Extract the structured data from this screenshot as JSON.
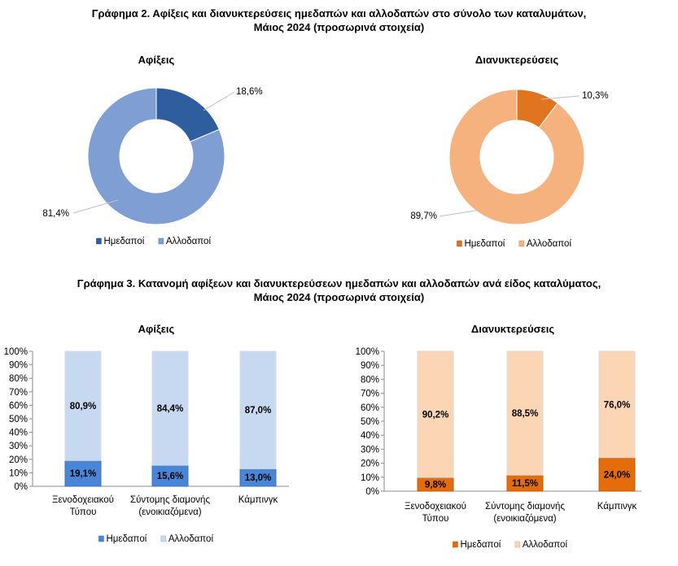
{
  "figure2": {
    "title_line1": "Γράφημα 2. Αφίξεις και διανυκτερεύσεις ημεδαπών και αλλοδαπών στο σύνολο των καταλυμάτων,",
    "title_line2": "Μάιος 2024  (προσωρινά στοιχεία)"
  },
  "figure3": {
    "title_line1": "Γράφημα 3. Κατανομή αφίξεων και διανυκτερεύσεων ημεδαπών και αλλοδαπών ανά είδος καταλύματος,",
    "title_line2": "Μάιος 2024 (προσωρινά στοιχεία)"
  },
  "chart_data": [
    {
      "type": "pie",
      "variant": "donut",
      "title": "Αφίξεις",
      "labels": [
        "Ημεδαποί",
        "Αλλοδαποί"
      ],
      "values": [
        18.6,
        81.4
      ],
      "value_labels": [
        "18,6%",
        "81,4%"
      ],
      "colors": [
        "#2F5E9E",
        "#7F9FD4"
      ],
      "legend": "bottom"
    },
    {
      "type": "pie",
      "variant": "donut",
      "title": "Διανυκτερεύσεις",
      "labels": [
        "Ημεδαποί",
        "Αλλοδαποί"
      ],
      "values": [
        10.3,
        89.7
      ],
      "value_labels": [
        "10,3%",
        "89,7%"
      ],
      "colors": [
        "#E1741E",
        "#F5B27F"
      ],
      "legend": "bottom"
    },
    {
      "type": "bar",
      "stacked": "percent",
      "title": "Αφίξεις",
      "categories": [
        [
          "Ξενοδοχειακού",
          "Τύπου"
        ],
        [
          "Σύντομης διαμονής",
          "(ενοικιαζόμενα)"
        ],
        [
          "Κάμπινγκ"
        ]
      ],
      "series": [
        {
          "name": "Ημεδαποί",
          "values": [
            19.1,
            15.6,
            13.0
          ],
          "labels": [
            "19,1%",
            "15,6%",
            "13,0%"
          ],
          "color": "#4A86D8"
        },
        {
          "name": "Αλλοδαποί",
          "values": [
            80.9,
            84.4,
            87.0
          ],
          "labels": [
            "80,9%",
            "84,4%",
            "87,0%"
          ],
          "color": "#C7D9F1"
        }
      ],
      "yticks": [
        "0%",
        "10%",
        "20%",
        "30%",
        "40%",
        "50%",
        "60%",
        "70%",
        "80%",
        "90%",
        "100%"
      ],
      "ylim": [
        0,
        100
      ],
      "legend": "bottom"
    },
    {
      "type": "bar",
      "stacked": "percent",
      "title": "Διανυκτερεύσεις",
      "categories": [
        [
          "Ξενοδοχειακού",
          "Τύπου"
        ],
        [
          "Σύντομης διαμονής",
          "(ενοικιαζόμενα)"
        ],
        [
          "Κάμπινγκ"
        ]
      ],
      "series": [
        {
          "name": "Ημεδαποί",
          "values": [
            9.8,
            11.5,
            24.0
          ],
          "labels": [
            "9,8%",
            "11,5%",
            "24,0%"
          ],
          "color": "#E46C0A"
        },
        {
          "name": "Αλλοδαποί",
          "values": [
            90.2,
            88.5,
            76.0
          ],
          "labels": [
            "90,2%",
            "88,5%",
            "76,0%"
          ],
          "color": "#FCD5B5"
        }
      ],
      "yticks": [
        "0%",
        "10%",
        "20%",
        "30%",
        "40%",
        "50%",
        "60%",
        "70%",
        "80%",
        "90%",
        "100%"
      ],
      "ylim": [
        0,
        100
      ],
      "legend": "bottom"
    }
  ]
}
